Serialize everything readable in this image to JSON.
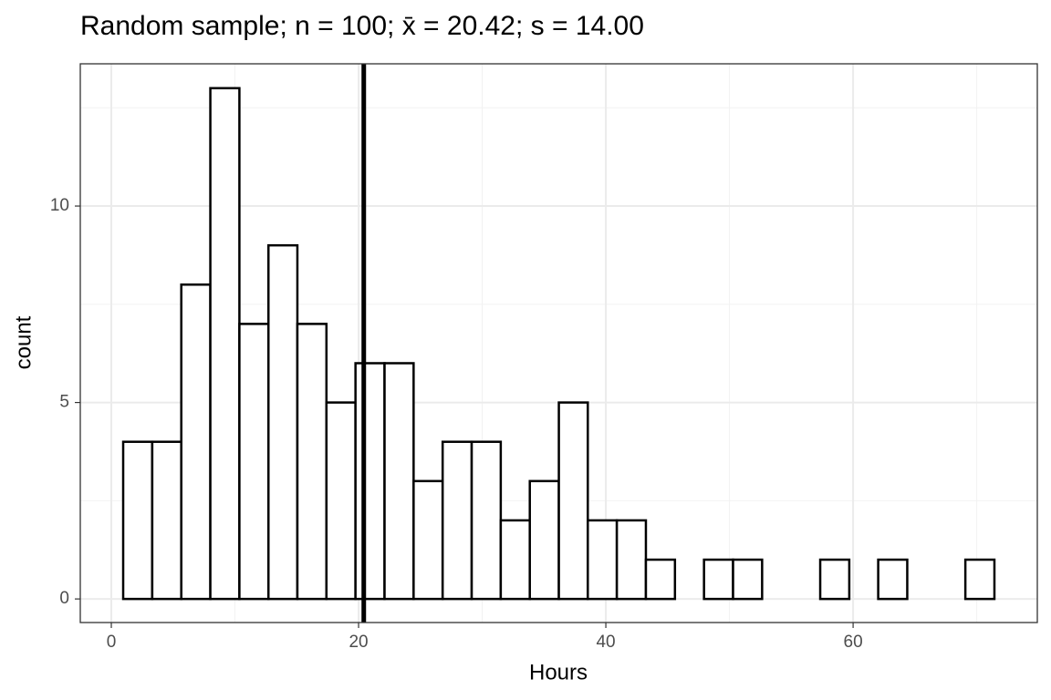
{
  "chart_data": {
    "type": "histogram",
    "title": "Random sample; n = 100; x̄ = 20.42; s = 14.00",
    "x_label": "Hours",
    "y_label": "count",
    "bins": [
      0.96,
      3.31,
      5.66,
      8.01,
      10.36,
      12.71,
      15.05,
      17.4,
      19.75,
      22.1,
      24.45,
      26.8,
      29.15,
      31.5,
      33.85,
      36.2,
      38.54,
      40.89,
      43.24,
      45.59,
      47.94,
      50.29,
      52.64,
      54.99,
      57.34,
      59.69,
      62.03,
      64.38,
      66.73,
      69.08,
      71.43
    ],
    "values": [
      4,
      4,
      8,
      13,
      7,
      9,
      7,
      5,
      6,
      6,
      3,
      4,
      4,
      2,
      3,
      5,
      2,
      2,
      1,
      0,
      1,
      1,
      0,
      0,
      1,
      0,
      1,
      0,
      0,
      1
    ],
    "mean_line": 20.42,
    "color": "#ffffff",
    "edge_color": "#000000",
    "xlim": [
      -2.51,
      74.9
    ],
    "ylim": [
      -0.6,
      13.62
    ],
    "xticks": [
      0,
      20,
      40,
      60
    ],
    "yticks": [
      0,
      5,
      10
    ],
    "xminor": [
      10,
      30,
      50,
      70
    ],
    "yminor": [
      2.5,
      7.5,
      12.5
    ],
    "grid": true
  }
}
